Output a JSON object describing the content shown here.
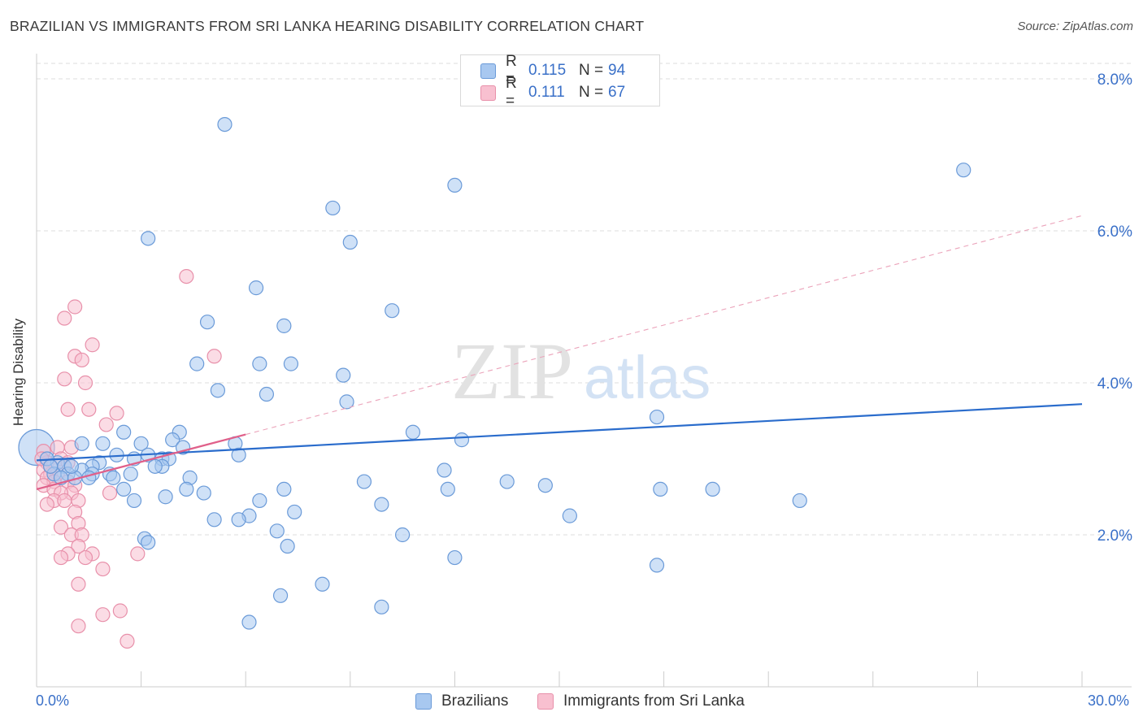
{
  "title": "BRAZILIAN VS IMMIGRANTS FROM SRI LANKA HEARING DISABILITY CORRELATION CHART",
  "source": "Source: ZipAtlas.com",
  "watermark": {
    "zip": "ZIP",
    "atlas": "atlas"
  },
  "legend": {
    "rows": [
      {
        "r_label": "R =",
        "r_value": "0.115",
        "n_label": "N =",
        "n_value": "94",
        "color": "#a8c8f0",
        "border": "#6a9ad8"
      },
      {
        "r_label": "R =",
        "r_value": "0.111",
        "n_label": "N =",
        "n_value": "67",
        "color": "#f8c0d0",
        "border": "#e890aa"
      }
    ]
  },
  "bottom_legend": [
    {
      "label": "Brazilians",
      "color": "#a8c8f0",
      "border": "#6a9ad8"
    },
    {
      "label": "Immigrants from Sri Lanka",
      "color": "#f8c0d0",
      "border": "#e890aa"
    }
  ],
  "chart_data": {
    "type": "scatter",
    "title": "BRAZILIAN VS IMMIGRANTS FROM SRI LANKA HEARING DISABILITY CORRELATION CHART",
    "xlabel": "",
    "ylabel": "Hearing Disability",
    "xlim": [
      0,
      30
    ],
    "ylim": [
      0,
      8.4
    ],
    "x_tick_labels": [
      "0.0%",
      "30.0%"
    ],
    "y_ticks": [
      2,
      4,
      6,
      8
    ],
    "y_tick_labels": [
      "2.0%",
      "4.0%",
      "6.0%",
      "8.0%"
    ],
    "grid": true,
    "series": [
      {
        "name": "Brazilians",
        "color": "#6a9ad8",
        "fill": "#a8c8f0",
        "trend": {
          "x": [
            0,
            30
          ],
          "y": [
            2.98,
            3.72
          ],
          "color": "#2a6ccc",
          "style": "solid"
        },
        "points": [
          [
            5.4,
            7.4
          ],
          [
            26.6,
            6.8
          ],
          [
            12.0,
            6.6
          ],
          [
            8.5,
            6.3
          ],
          [
            3.2,
            5.9
          ],
          [
            9.0,
            5.85
          ],
          [
            6.3,
            5.25
          ],
          [
            10.2,
            4.95
          ],
          [
            4.9,
            4.8
          ],
          [
            7.1,
            4.75
          ],
          [
            4.6,
            4.25
          ],
          [
            6.4,
            4.25
          ],
          [
            7.3,
            4.25
          ],
          [
            8.8,
            4.1
          ],
          [
            5.2,
            3.9
          ],
          [
            6.6,
            3.85
          ],
          [
            8.9,
            3.75
          ],
          [
            17.8,
            3.55
          ],
          [
            10.8,
            3.35
          ],
          [
            2.5,
            3.35
          ],
          [
            4.1,
            3.35
          ],
          [
            12.2,
            3.25
          ],
          [
            1.3,
            3.2
          ],
          [
            1.9,
            3.2
          ],
          [
            3.0,
            3.2
          ],
          [
            3.9,
            3.25
          ],
          [
            5.7,
            3.2
          ],
          [
            3.2,
            3.05
          ],
          [
            2.3,
            3.05
          ],
          [
            3.6,
            3.0
          ],
          [
            4.2,
            3.15
          ],
          [
            5.8,
            3.05
          ],
          [
            1.8,
            2.95
          ],
          [
            0.6,
            2.95
          ],
          [
            0.8,
            2.9
          ],
          [
            1.6,
            2.9
          ],
          [
            3.8,
            3.0
          ],
          [
            3.6,
            2.9
          ],
          [
            2.8,
            3.0
          ],
          [
            3.4,
            2.9
          ],
          [
            0.5,
            2.8
          ],
          [
            0.9,
            2.8
          ],
          [
            1.3,
            2.85
          ],
          [
            1.6,
            2.8
          ],
          [
            2.1,
            2.8
          ],
          [
            2.7,
            2.8
          ],
          [
            1.1,
            2.75
          ],
          [
            2.2,
            2.75
          ],
          [
            4.4,
            2.75
          ],
          [
            11.7,
            2.85
          ],
          [
            9.4,
            2.7
          ],
          [
            13.5,
            2.7
          ],
          [
            14.6,
            2.65
          ],
          [
            7.1,
            2.6
          ],
          [
            11.8,
            2.6
          ],
          [
            17.9,
            2.6
          ],
          [
            19.4,
            2.6
          ],
          [
            2.5,
            2.6
          ],
          [
            4.3,
            2.6
          ],
          [
            4.8,
            2.55
          ],
          [
            3.7,
            2.5
          ],
          [
            6.4,
            2.45
          ],
          [
            9.9,
            2.4
          ],
          [
            2.8,
            2.45
          ],
          [
            21.9,
            2.45
          ],
          [
            7.4,
            2.3
          ],
          [
            6.1,
            2.25
          ],
          [
            15.3,
            2.25
          ],
          [
            5.1,
            2.2
          ],
          [
            5.8,
            2.2
          ],
          [
            6.9,
            2.05
          ],
          [
            10.5,
            2.0
          ],
          [
            3.1,
            1.95
          ],
          [
            3.2,
            1.9
          ],
          [
            7.2,
            1.85
          ],
          [
            12.0,
            1.7
          ],
          [
            17.8,
            1.6
          ],
          [
            8.2,
            1.35
          ],
          [
            7.0,
            1.2
          ],
          [
            9.9,
            1.05
          ],
          [
            6.1,
            0.85
          ],
          [
            0.3,
            3.0
          ],
          [
            0.4,
            2.9
          ],
          [
            1.0,
            2.9
          ],
          [
            0.7,
            2.75
          ],
          [
            1.5,
            2.75
          ]
        ]
      },
      {
        "name": "Immigrants from Sri Lanka",
        "color": "#e890aa",
        "fill": "#f8c0d0",
        "trend": {
          "x": [
            0,
            30
          ],
          "y": [
            2.6,
            6.2
          ],
          "color": "#e0608a",
          "style": "solid-to-dashed",
          "solid_until": 6.0
        },
        "points": [
          [
            4.3,
            5.4
          ],
          [
            1.1,
            5.0
          ],
          [
            0.8,
            4.85
          ],
          [
            1.6,
            4.5
          ],
          [
            1.1,
            4.35
          ],
          [
            5.1,
            4.35
          ],
          [
            1.3,
            4.3
          ],
          [
            0.8,
            4.05
          ],
          [
            1.4,
            4.0
          ],
          [
            1.5,
            3.65
          ],
          [
            0.9,
            3.65
          ],
          [
            2.3,
            3.6
          ],
          [
            2.0,
            3.45
          ],
          [
            0.2,
            3.1
          ],
          [
            0.6,
            3.15
          ],
          [
            1.0,
            3.15
          ],
          [
            0.7,
            3.0
          ],
          [
            0.3,
            2.95
          ],
          [
            0.9,
            2.95
          ],
          [
            0.2,
            2.85
          ],
          [
            0.4,
            2.8
          ],
          [
            0.6,
            2.8
          ],
          [
            0.3,
            2.75
          ],
          [
            0.5,
            2.7
          ],
          [
            0.9,
            2.7
          ],
          [
            1.1,
            2.65
          ],
          [
            0.2,
            2.65
          ],
          [
            0.5,
            2.6
          ],
          [
            1.0,
            2.55
          ],
          [
            0.7,
            2.55
          ],
          [
            2.1,
            2.55
          ],
          [
            0.5,
            2.45
          ],
          [
            0.8,
            2.45
          ],
          [
            1.2,
            2.45
          ],
          [
            0.3,
            2.4
          ],
          [
            1.1,
            2.3
          ],
          [
            1.2,
            2.15
          ],
          [
            0.7,
            2.1
          ],
          [
            1.0,
            2.0
          ],
          [
            1.3,
            2.0
          ],
          [
            1.2,
            1.85
          ],
          [
            0.9,
            1.75
          ],
          [
            1.6,
            1.75
          ],
          [
            2.9,
            1.75
          ],
          [
            0.7,
            1.7
          ],
          [
            1.4,
            1.7
          ],
          [
            1.9,
            1.55
          ],
          [
            1.2,
            1.35
          ],
          [
            2.4,
            1.0
          ],
          [
            1.9,
            0.95
          ],
          [
            1.2,
            0.8
          ],
          [
            2.6,
            0.6
          ],
          [
            0.15,
            3.0
          ],
          [
            0.4,
            2.9
          ]
        ]
      }
    ]
  }
}
